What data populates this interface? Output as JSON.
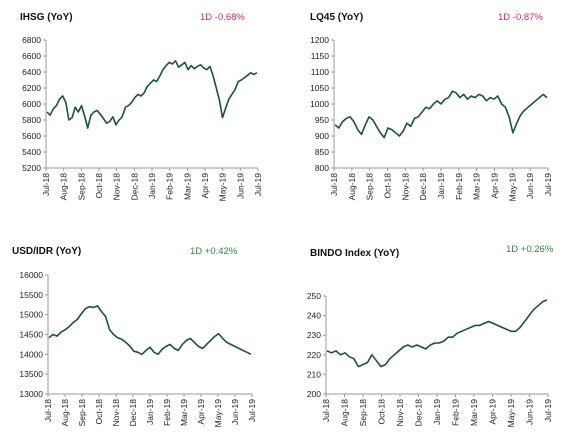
{
  "line_color": "#17572f",
  "negative_color": "#e0245e",
  "positive_color": "#2e8b3a",
  "chart_data": [
    {
      "type": "line",
      "title": "IHSG (YoY)",
      "change": "1D -0.68%",
      "change_sign": "negative",
      "ylim": [
        5200,
        6800
      ],
      "yticks": [
        "6800",
        "6600",
        "6400",
        "6200",
        "6000",
        "5800",
        "5600",
        "5400",
        "5200"
      ],
      "xticks": [
        "Jul-18",
        "Aug-18",
        "Sep-18",
        "Oct-18",
        "Nov-18",
        "Dec-18",
        "Jan-19",
        "Feb-19",
        "Mar-19",
        "Apr-19",
        "May-19",
        "Jun-19",
        "Jul-19"
      ],
      "y": [
        5900,
        5860,
        5940,
        5980,
        6060,
        6100,
        6020,
        5800,
        5830,
        5960,
        5900,
        5980,
        5850,
        5700,
        5860,
        5900,
        5920,
        5870,
        5820,
        5760,
        5780,
        5840,
        5740,
        5800,
        5840,
        5960,
        5980,
        6020,
        6080,
        6120,
        6100,
        6140,
        6220,
        6260,
        6300,
        6280,
        6350,
        6430,
        6480,
        6520,
        6500,
        6540,
        6460,
        6490,
        6520,
        6430,
        6480,
        6440,
        6470,
        6490,
        6450,
        6430,
        6470,
        6350,
        6200,
        6050,
        5830,
        5950,
        6060,
        6120,
        6180,
        6280,
        6300,
        6330,
        6360,
        6390,
        6370,
        6390
      ]
    },
    {
      "type": "line",
      "title": "LQ45 (YoY)",
      "change": "1D -0.87%",
      "change_sign": "negative",
      "ylim": [
        800,
        1200
      ],
      "yticks": [
        "1200",
        "1150",
        "1100",
        "1050",
        "1000",
        "950",
        "900",
        "850",
        "800"
      ],
      "xticks": [
        "Jul-18",
        "Aug-18",
        "Sep-18",
        "Oct-18",
        "Nov-18",
        "Dec-18",
        "Jan-19",
        "Feb-19",
        "Mar-19",
        "Apr-19",
        "May-19",
        "Jun-19",
        "Jul-19"
      ],
      "y": [
        935,
        925,
        945,
        955,
        960,
        945,
        920,
        905,
        935,
        960,
        950,
        930,
        910,
        895,
        925,
        920,
        910,
        900,
        915,
        940,
        930,
        955,
        960,
        975,
        990,
        985,
        1000,
        1010,
        1000,
        1015,
        1020,
        1040,
        1035,
        1020,
        1030,
        1015,
        1025,
        1020,
        1030,
        1025,
        1010,
        1020,
        1015,
        1025,
        1000,
        990,
        960,
        910,
        940,
        965,
        980,
        990,
        1000,
        1010,
        1020,
        1030,
        1020
      ]
    },
    {
      "type": "line",
      "title": "USD/IDR  (YoY)",
      "change": "1D +0.42%",
      "change_sign": "positive",
      "ylim": [
        13000,
        16000
      ],
      "yticks": [
        "16000",
        "15500",
        "15000",
        "14500",
        "14000",
        "13500",
        "13000"
      ],
      "xticks": [
        "Jul-18",
        "Aug-18",
        "Sep-18",
        "Oct-18",
        "Nov-18",
        "Dec-18",
        "Jan-19",
        "Feb-19",
        "Mar-19",
        "Apr-19",
        "May-19",
        "Jun-19",
        "Jul-19"
      ],
      "y": [
        14420,
        14500,
        14460,
        14560,
        14620,
        14700,
        14800,
        14880,
        15020,
        15150,
        15200,
        15180,
        15220,
        15080,
        14950,
        14620,
        14500,
        14420,
        14380,
        14300,
        14210,
        14080,
        14050,
        14000,
        14100,
        14180,
        14050,
        14000,
        14130,
        14200,
        14250,
        14150,
        14100,
        14250,
        14350,
        14400,
        14300,
        14200,
        14150,
        14250,
        14350,
        14450,
        14520,
        14400,
        14300,
        14250,
        14200,
        14150,
        14100,
        14050,
        14000
      ]
    },
    {
      "type": "line",
      "title": "BINDO Index (YoY)",
      "change": "1D +0.26%",
      "change_sign": "positive",
      "ylim": [
        200,
        250
      ],
      "yticks": [
        "250",
        "240",
        "230",
        "220",
        "210",
        "200"
      ],
      "xticks": [
        "Jul-18",
        "Aug-18",
        "Sep-18",
        "Oct-18",
        "Nov-18",
        "Dec-18",
        "Jan-19",
        "Feb-19",
        "Mar-19",
        "Apr-19",
        "May-19",
        "Jun-19",
        "Jul-19"
      ],
      "y": [
        222,
        221,
        222,
        220,
        221,
        219,
        218,
        214,
        215,
        216,
        220,
        217,
        214,
        215,
        218,
        220,
        222,
        224,
        225,
        224,
        225,
        224,
        223,
        225,
        226,
        226,
        227,
        229,
        229,
        231,
        232,
        233,
        234,
        235,
        235,
        236,
        237,
        236,
        235,
        234,
        233,
        232,
        232,
        234,
        237,
        240,
        243,
        245,
        247,
        248
      ]
    }
  ]
}
